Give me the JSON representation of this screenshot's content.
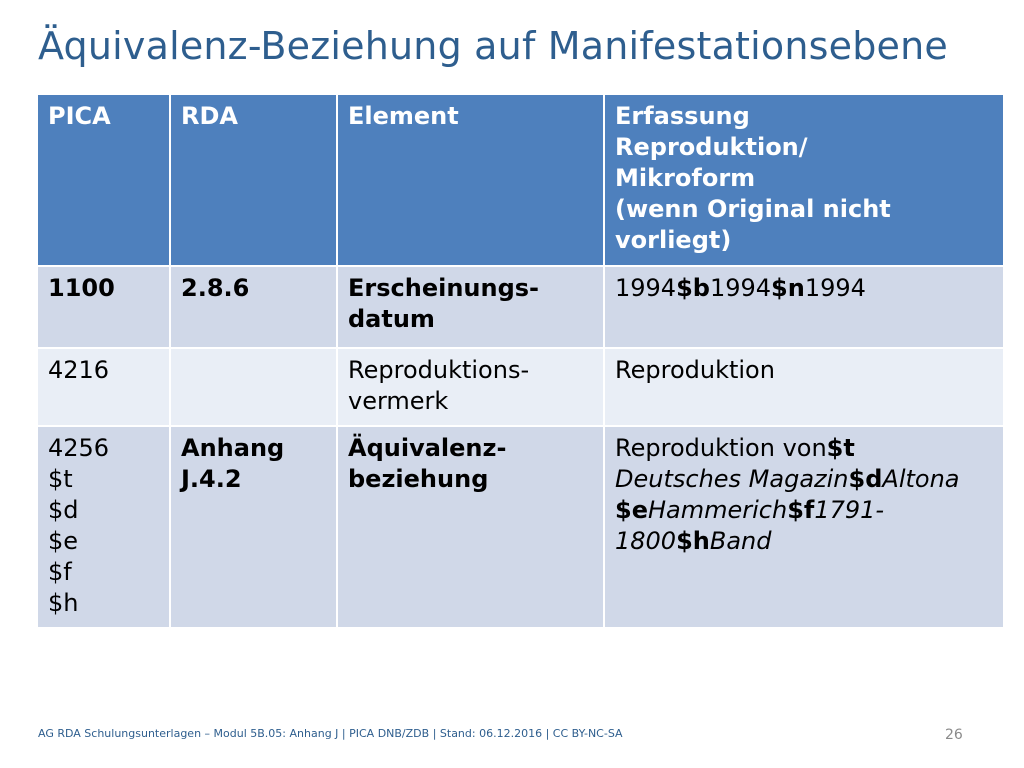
{
  "slide": {
    "title": "Äquivalenz-Beziehung auf Manifestationsebene",
    "footer": "AG RDA Schulungsunterlagen – Modul 5B.05: Anhang J | PICA DNB/ZDB | Stand: 06.12.2016 | CC BY-NC-SA",
    "page_number": "26"
  },
  "table": {
    "headers": [
      "PICA",
      "RDA",
      "Element",
      "Erfassung\nReproduktion/\nMikroform\n(wenn Original nicht\nvorliegt)"
    ],
    "rows": [
      {
        "pica": "1100",
        "rda": "2.8.6",
        "element": "Erscheinungs-\ndatum",
        "erfassung": {
          "p1": "1994",
          "c1": "$b",
          "p2": "1994",
          "c2": "$n",
          "p3": "1994"
        }
      },
      {
        "pica": "4216",
        "rda": "",
        "element": "Reproduktions-\nvermerk",
        "erfassung": {
          "text": "Reproduktion"
        }
      },
      {
        "pica": "4256\n$t\n$d\n$e\n$f\n$h",
        "rda": "Anhang\nJ.4.2",
        "element": "Äquivalenz-\nbeziehung",
        "erfassung": {
          "prefix": "Reproduktion von",
          "c_t": "$t",
          "t": "Deutsches Magazin",
          "c_d": "$d",
          "d": "Altona",
          "c_e": "$e",
          "e": "Hammerich",
          "c_f": "$f",
          "f": "1791-\n1800",
          "c_h": "$h",
          "h": "Band"
        }
      }
    ]
  }
}
